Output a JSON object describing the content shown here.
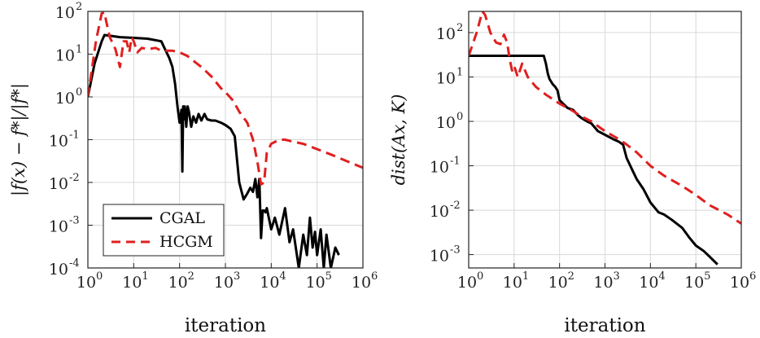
{
  "chart_data": [
    {
      "type": "line",
      "xscale": "log",
      "yscale": "log",
      "xlabel": "iteration",
      "ylabel": "|f(x) − f*|/|f*|",
      "xlim": [
        1,
        1000000
      ],
      "ylim": [
        0.0001,
        100
      ],
      "grid": true,
      "legend": "lower-left",
      "xticks": [
        {
          "base": "10",
          "exp": "0",
          "value": 1
        },
        {
          "base": "10",
          "exp": "1",
          "value": 10
        },
        {
          "base": "10",
          "exp": "2",
          "value": 100
        },
        {
          "base": "10",
          "exp": "3",
          "value": 1000
        },
        {
          "base": "10",
          "exp": "4",
          "value": 10000
        },
        {
          "base": "10",
          "exp": "5",
          "value": 100000
        },
        {
          "base": "10",
          "exp": "6",
          "value": 1000000
        }
      ],
      "yticks": [
        {
          "base": "10",
          "exp": "2",
          "value": 100
        },
        {
          "base": "10",
          "exp": "1",
          "value": 10
        },
        {
          "base": "10",
          "exp": "0",
          "value": 1
        },
        {
          "base": "10",
          "exp": "-1",
          "value": 0.1
        },
        {
          "base": "10",
          "exp": "-2",
          "value": 0.01
        },
        {
          "base": "10",
          "exp": "-3",
          "value": 0.001
        },
        {
          "base": "10",
          "exp": "-4",
          "value": 0.0001
        }
      ],
      "series": [
        {
          "name": "CGAL",
          "color": "#000000",
          "style": "solid",
          "x": [
            1,
            1.4,
            2,
            2.3,
            3,
            5,
            10,
            20,
            40,
            50,
            60,
            70,
            80,
            90,
            100,
            110,
            115,
            120,
            125,
            130,
            140,
            150,
            160,
            180,
            200,
            230,
            260,
            300,
            350,
            400,
            500,
            600,
            800,
            1000,
            1300,
            1600,
            2000,
            2500,
            3000,
            3500,
            4000,
            4500,
            5000,
            5500,
            6000,
            6500,
            7000,
            7500,
            8000,
            10000,
            12000,
            15000,
            20000,
            25000,
            30000,
            40000,
            50000,
            60000,
            70000,
            80000,
            90000,
            100000,
            120000,
            140000,
            160000,
            200000,
            250000,
            300000
          ],
          "values": [
            1.0,
            6.0,
            20.0,
            28.0,
            27.0,
            25.0,
            24.0,
            23.0,
            20.0,
            12.0,
            8.0,
            5.0,
            2.0,
            0.6,
            0.25,
            0.5,
            0.018,
            0.6,
            0.3,
            0.6,
            0.2,
            0.6,
            0.45,
            0.2,
            0.35,
            0.25,
            0.4,
            0.28,
            0.4,
            0.3,
            0.28,
            0.28,
            0.25,
            0.22,
            0.18,
            0.12,
            0.01,
            0.004,
            0.0055,
            0.0075,
            0.006,
            0.012,
            0.0045,
            0.012,
            0.0005,
            0.0022,
            0.0022,
            0.002,
            0.0025,
            0.0008,
            0.0015,
            0.0006,
            0.0025,
            0.0004,
            0.0008,
            0.0001,
            0.0006,
            0.0002,
            0.0015,
            0.0003,
            0.0007,
            0.0002,
            0.0008,
            0.0001,
            0.0006,
            0.0001,
            0.0003,
            0.0002
          ]
        },
        {
          "name": "HCGM",
          "color": "#e01f1f",
          "style": "dashed",
          "x": [
            1,
            1.5,
            2,
            2.3,
            2.5,
            3,
            4,
            5,
            6,
            7,
            8,
            9,
            10,
            12,
            15,
            20,
            30,
            40,
            50,
            70,
            100,
            150,
            200,
            300,
            500,
            800,
            1000,
            1500,
            2000,
            3000,
            4000,
            5000,
            6000,
            7000,
            8000,
            10000,
            15000,
            20000,
            30000,
            50000,
            100000,
            200000,
            500000,
            1000000
          ],
          "values": [
            1.0,
            20.0,
            90.0,
            95.0,
            60.0,
            25.0,
            13.0,
            5.0,
            20.0,
            20.0,
            11.0,
            25.0,
            20.0,
            11.0,
            14.0,
            13.0,
            14.0,
            12.0,
            12.0,
            12.0,
            11.0,
            9.0,
            7.0,
            5.0,
            3.0,
            1.6,
            1.3,
            0.8,
            0.45,
            0.25,
            0.1,
            0.03,
            0.009,
            0.01,
            0.05,
            0.08,
            0.1,
            0.1,
            0.09,
            0.08,
            0.06,
            0.045,
            0.03,
            0.022
          ]
        }
      ]
    },
    {
      "type": "line",
      "xscale": "log",
      "yscale": "log",
      "xlabel": "iteration",
      "ylabel": "dist(Ax, K)",
      "xlim": [
        1,
        1000000
      ],
      "ylim": [
        0.0005,
        300
      ],
      "grid": true,
      "legend": "none",
      "xticks": [
        {
          "base": "10",
          "exp": "0",
          "value": 1
        },
        {
          "base": "10",
          "exp": "1",
          "value": 10
        },
        {
          "base": "10",
          "exp": "2",
          "value": 100
        },
        {
          "base": "10",
          "exp": "3",
          "value": 1000
        },
        {
          "base": "10",
          "exp": "4",
          "value": 10000
        },
        {
          "base": "10",
          "exp": "5",
          "value": 100000
        },
        {
          "base": "10",
          "exp": "6",
          "value": 1000000
        }
      ],
      "yticks": [
        {
          "base": "10",
          "exp": "2",
          "value": 100
        },
        {
          "base": "10",
          "exp": "1",
          "value": 10
        },
        {
          "base": "10",
          "exp": "0",
          "value": 1
        },
        {
          "base": "10",
          "exp": "-1",
          "value": 0.1
        },
        {
          "base": "10",
          "exp": "-2",
          "value": 0.01
        },
        {
          "base": "10",
          "exp": "-3",
          "value": 0.001
        }
      ],
      "series": [
        {
          "name": "CGAL",
          "color": "#000000",
          "style": "solid",
          "x": [
            1,
            2,
            5,
            10,
            20,
            35,
            45,
            50,
            55,
            60,
            70,
            80,
            90,
            100,
            120,
            150,
            200,
            250,
            300,
            400,
            500,
            700,
            1000,
            1500,
            2000,
            2500,
            3000,
            4000,
            5000,
            7000,
            10000,
            15000,
            20000,
            30000,
            50000,
            70000,
            100000,
            150000,
            200000,
            300000
          ],
          "values": [
            30.0,
            30.0,
            30.0,
            30.0,
            30.0,
            30.0,
            30.0,
            20.0,
            12.0,
            9.0,
            7.0,
            6.0,
            5.0,
            3.0,
            2.5,
            2.0,
            1.8,
            1.4,
            1.2,
            1.0,
            0.9,
            0.6,
            0.5,
            0.4,
            0.35,
            0.3,
            0.15,
            0.08,
            0.05,
            0.03,
            0.015,
            0.009,
            0.008,
            0.006,
            0.004,
            0.0025,
            0.0016,
            0.0012,
            0.0009,
            0.0006
          ]
        },
        {
          "name": "HCGM",
          "color": "#e01f1f",
          "style": "dashed",
          "x": [
            1,
            1.5,
            2,
            2.3,
            3,
            4,
            5,
            6,
            7,
            8,
            9,
            10,
            12,
            15,
            20,
            30,
            50,
            70,
            100,
            150,
            200,
            300,
            500,
            1000,
            2000,
            3000,
            5000,
            10000,
            20000,
            50000,
            100000,
            200000,
            500000,
            1000000
          ],
          "values": [
            30.0,
            100.0,
            300.0,
            250.0,
            100.0,
            60.0,
            55.0,
            90.0,
            60.0,
            25.0,
            14.0,
            18.0,
            10.0,
            20.0,
            10.0,
            6.0,
            4.0,
            3.2,
            2.5,
            2.0,
            1.7,
            1.3,
            1.0,
            0.6,
            0.4,
            0.3,
            0.2,
            0.1,
            0.06,
            0.035,
            0.022,
            0.013,
            0.008,
            0.005
          ]
        }
      ]
    }
  ]
}
